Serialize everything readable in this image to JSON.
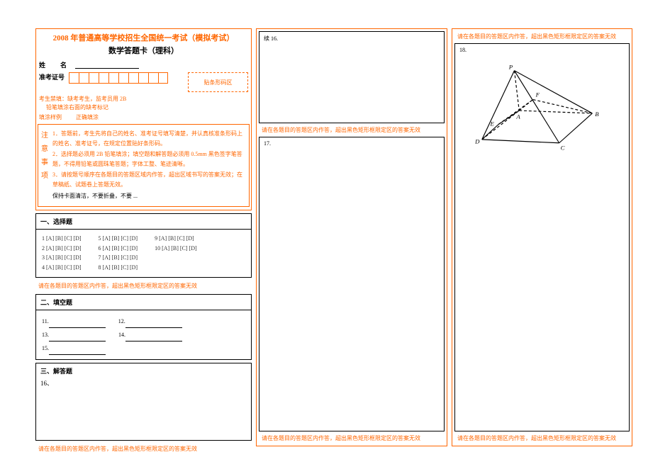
{
  "colors": {
    "accent": "#ff6600",
    "border_black": "#000000",
    "background": "#ffffff",
    "text": "#000000"
  },
  "header": {
    "title": "2008 年普通高等学校招生全国统一考试（模拟考试）",
    "subtitle": "数学答题卡（理科）"
  },
  "candidate": {
    "name_label": "姓　名",
    "id_label": "准考证号",
    "id_cells": 10,
    "barcode_label": "贴条形码区"
  },
  "pencil_notes": {
    "line1": "考生禁填：缺考考生，监考员用 2B",
    "line2": "铅笔填涂右面的缺考标记"
  },
  "legend": {
    "a": "填涂样例",
    "b": "正确填涂"
  },
  "notice": {
    "side": "注 意 事 项",
    "items": [
      "1．答题前，考生先将自己的姓名、准考证号填写清楚，并认真核准条形码上的姓名、准考证号，在规定位置贴好条形码。",
      "2．选择题必须用 2B 铅笔填涂；填空题和解答题必须用 0.5mm 黑色签字笔答题，不得用铅笔或圆珠笔答题；字体工整、笔迹清晰。",
      "3．请按题号顺序在各题目的答题区域内作答，超出区域书写的答案无效；在草稿纸、试题卷上答题无效。"
    ],
    "footer": "保持卡面清洁，不要折叠，不要 ..."
  },
  "sections": {
    "mc_title": "一、选择题",
    "mc_opts": "[A] [B] [C] [D]",
    "mc_rows": [
      [
        "1",
        "5",
        "9"
      ],
      [
        "2",
        "6",
        "10"
      ],
      [
        "3",
        "7",
        ""
      ],
      [
        "4",
        "8",
        ""
      ]
    ],
    "fill_title": "二、填空题",
    "fill_rows": [
      [
        "11.",
        "12."
      ],
      [
        "13.",
        "14."
      ],
      [
        "15.",
        ""
      ]
    ],
    "ans_title": "三、解答题",
    "ans_first": "16、"
  },
  "warn": "请在各题目的答题区内作答，超出黑色矩形框限定区的答案无效",
  "col2": {
    "q16": "续 16.",
    "q17": "17."
  },
  "col3": {
    "q18": "18."
  },
  "geometry": {
    "type": "diagram",
    "stroke": "#000000",
    "stroke_width": 1.2,
    "points": {
      "P": [
        55,
        0
      ],
      "A": [
        62,
        58
      ],
      "B": [
        168,
        62
      ],
      "C": [
        120,
        105
      ],
      "D": [
        8,
        100
      ],
      "E": [
        32,
        78
      ],
      "F": [
        82,
        42
      ]
    },
    "solid_edges": [
      [
        "P",
        "D"
      ],
      [
        "P",
        "B"
      ],
      [
        "P",
        "C"
      ],
      [
        "D",
        "C"
      ],
      [
        "C",
        "B"
      ],
      [
        "D",
        "E"
      ],
      [
        "E",
        "A"
      ]
    ],
    "dashed_edges": [
      [
        "D",
        "A"
      ],
      [
        "A",
        "B"
      ],
      [
        "P",
        "A"
      ],
      [
        "A",
        "F"
      ],
      [
        "E",
        "F"
      ],
      [
        "F",
        "B"
      ]
    ],
    "label_offsets": {
      "P": [
        -8,
        -2
      ],
      "A": [
        -4,
        12
      ],
      "B": [
        4,
        4
      ],
      "C": [
        2,
        10
      ],
      "D": [
        -10,
        6
      ],
      "E": [
        -12,
        2
      ],
      "F": [
        4,
        -4
      ]
    }
  }
}
